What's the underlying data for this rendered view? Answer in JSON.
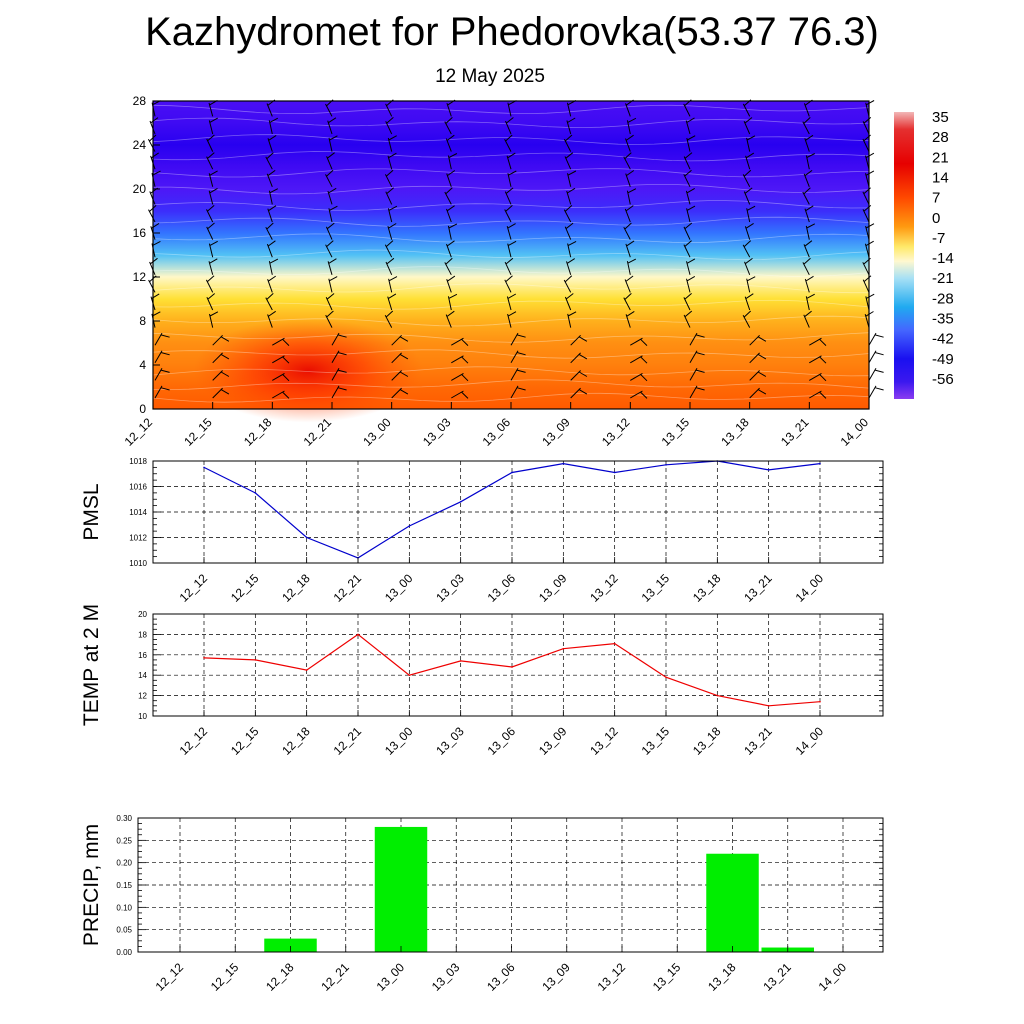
{
  "header": {
    "title": "Kazhydromet for Phedorovka(53.37 76.3)",
    "date": "12 May 2025"
  },
  "colors": {
    "pmsl_line": "#0000cc",
    "temp_line": "#ee0000",
    "precip_bar": "#00ee00",
    "grid": "#000000"
  },
  "time_labels": [
    "12_12",
    "12_15",
    "12_18",
    "12_21",
    "13_00",
    "13_03",
    "13_06",
    "13_09",
    "13_12",
    "13_15",
    "13_18",
    "13_21",
    "14_00"
  ],
  "chart_data": [
    {
      "type": "heatmap",
      "title": "",
      "y_ticks": [
        0,
        4,
        8,
        12,
        16,
        20,
        24,
        28
      ],
      "ylim": [
        0,
        28
      ],
      "x_ticks": [
        "12_12",
        "12_15",
        "12_18",
        "12_21",
        "13_00",
        "13_03",
        "13_06",
        "13_09",
        "13_12",
        "13_15",
        "13_18",
        "13_21",
        "14_00"
      ],
      "colorbar_labels": [
        "35",
        "28",
        "21",
        "14",
        "7",
        "0",
        "-7",
        "-14",
        "-21",
        "-28",
        "-35",
        "-42",
        "-49",
        "-56"
      ],
      "colorbar_range": [
        -60,
        38
      ],
      "profile": [
        {
          "h": 0,
          "t": 10
        },
        {
          "h": 2,
          "t": 8
        },
        {
          "h": 4,
          "t": 5
        },
        {
          "h": 6,
          "t": 3
        },
        {
          "h": 8,
          "t": -1
        },
        {
          "h": 10,
          "t": -7
        },
        {
          "h": 12,
          "t": -13
        },
        {
          "h": 14,
          "t": -24
        },
        {
          "h": 16,
          "t": -36
        },
        {
          "h": 18,
          "t": -48
        },
        {
          "h": 20,
          "t": -54
        },
        {
          "h": 22,
          "t": -58
        },
        {
          "h": 24,
          "t": -60
        },
        {
          "h": 26,
          "t": -58
        },
        {
          "h": 28,
          "t": -57
        }
      ],
      "warm_anomaly": {
        "time_index": 2.6,
        "height": 3.5,
        "peak": 15
      }
    },
    {
      "type": "line",
      "ylabel": "PMSL",
      "ylim": [
        1010,
        1018
      ],
      "y_ticks": [
        1010,
        1012,
        1014,
        1016,
        1018
      ],
      "categories": [
        "12_12",
        "12_15",
        "12_18",
        "12_21",
        "13_00",
        "13_03",
        "13_06",
        "13_09",
        "13_12",
        "13_15",
        "13_18",
        "13_21",
        "14_00"
      ],
      "values": [
        1017.5,
        1015.5,
        1012.0,
        1010.4,
        1012.9,
        1014.8,
        1017.1,
        1017.8,
        1017.1,
        1017.7,
        1018.0,
        1017.3,
        1017.8
      ]
    },
    {
      "type": "line",
      "ylabel": "TEMP at 2 M",
      "ylim": [
        10,
        20
      ],
      "y_ticks": [
        10,
        12,
        14,
        16,
        18,
        20
      ],
      "categories": [
        "12_12",
        "12_15",
        "12_18",
        "12_21",
        "13_00",
        "13_03",
        "13_06",
        "13_09",
        "13_12",
        "13_15",
        "13_18",
        "13_21",
        "14_00"
      ],
      "values": [
        15.7,
        15.5,
        14.5,
        18.0,
        14.0,
        15.4,
        14.8,
        16.6,
        17.1,
        13.8,
        12.0,
        11.0,
        11.4
      ]
    },
    {
      "type": "bar",
      "ylabel": "PRECIP, mm",
      "ylim": [
        0,
        0.3
      ],
      "y_ticks": [
        "0.00",
        "0.05",
        "0.10",
        "0.15",
        "0.20",
        "0.25",
        "0.30"
      ],
      "categories": [
        "12_12",
        "12_15",
        "12_18",
        "12_21",
        "13_00",
        "13_03",
        "13_06",
        "13_09",
        "13_12",
        "13_15",
        "13_18",
        "13_21",
        "14_00"
      ],
      "values": [
        0,
        0,
        0.03,
        0,
        0.28,
        0,
        0,
        0,
        0,
        0,
        0.22,
        0.01,
        0
      ]
    }
  ]
}
